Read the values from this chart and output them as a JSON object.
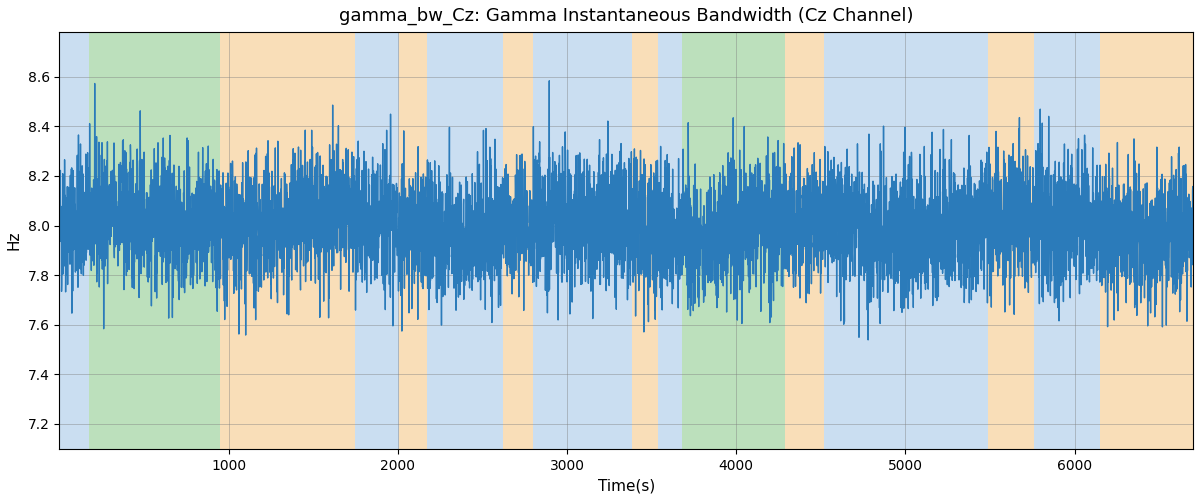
{
  "title": "gamma_bw_Cz: Gamma Instantaneous Bandwidth (Cz Channel)",
  "xlabel": "Time(s)",
  "ylabel": "Hz",
  "xlim": [
    0,
    6700
  ],
  "ylim": [
    7.1,
    8.78
  ],
  "line_color": "#2b7bba",
  "line_width": 1.0,
  "seed": 42,
  "n_points": 6700,
  "mean": 8.0,
  "std": 0.14,
  "background_bands": [
    {
      "xmin": 0,
      "xmax": 175,
      "color": "#a8c8e8",
      "alpha": 0.6
    },
    {
      "xmin": 175,
      "xmax": 950,
      "color": "#90cc90",
      "alpha": 0.6
    },
    {
      "xmin": 950,
      "xmax": 1750,
      "color": "#f5c98a",
      "alpha": 0.6
    },
    {
      "xmin": 1750,
      "xmax": 2010,
      "color": "#a8c8e8",
      "alpha": 0.6
    },
    {
      "xmin": 2010,
      "xmax": 2175,
      "color": "#f5c98a",
      "alpha": 0.6
    },
    {
      "xmin": 2175,
      "xmax": 2620,
      "color": "#a8c8e8",
      "alpha": 0.6
    },
    {
      "xmin": 2620,
      "xmax": 2800,
      "color": "#f5c98a",
      "alpha": 0.6
    },
    {
      "xmin": 2800,
      "xmax": 3385,
      "color": "#a8c8e8",
      "alpha": 0.6
    },
    {
      "xmin": 3385,
      "xmax": 3540,
      "color": "#f5c98a",
      "alpha": 0.6
    },
    {
      "xmin": 3540,
      "xmax": 3680,
      "color": "#a8c8e8",
      "alpha": 0.6
    },
    {
      "xmin": 3680,
      "xmax": 4290,
      "color": "#90cc90",
      "alpha": 0.6
    },
    {
      "xmin": 4290,
      "xmax": 4520,
      "color": "#f5c98a",
      "alpha": 0.6
    },
    {
      "xmin": 4520,
      "xmax": 5490,
      "color": "#a8c8e8",
      "alpha": 0.6
    },
    {
      "xmin": 5490,
      "xmax": 5760,
      "color": "#f5c98a",
      "alpha": 0.6
    },
    {
      "xmin": 5760,
      "xmax": 6150,
      "color": "#a8c8e8",
      "alpha": 0.6
    },
    {
      "xmin": 6150,
      "xmax": 6700,
      "color": "#f5c98a",
      "alpha": 0.6
    }
  ],
  "yticks": [
    7.2,
    7.4,
    7.6,
    7.8,
    8.0,
    8.2,
    8.4,
    8.6
  ],
  "xticks": [
    1000,
    2000,
    3000,
    4000,
    5000,
    6000
  ],
  "title_fontsize": 13,
  "label_fontsize": 11,
  "figsize": [
    12.0,
    5.0
  ],
  "dpi": 100
}
